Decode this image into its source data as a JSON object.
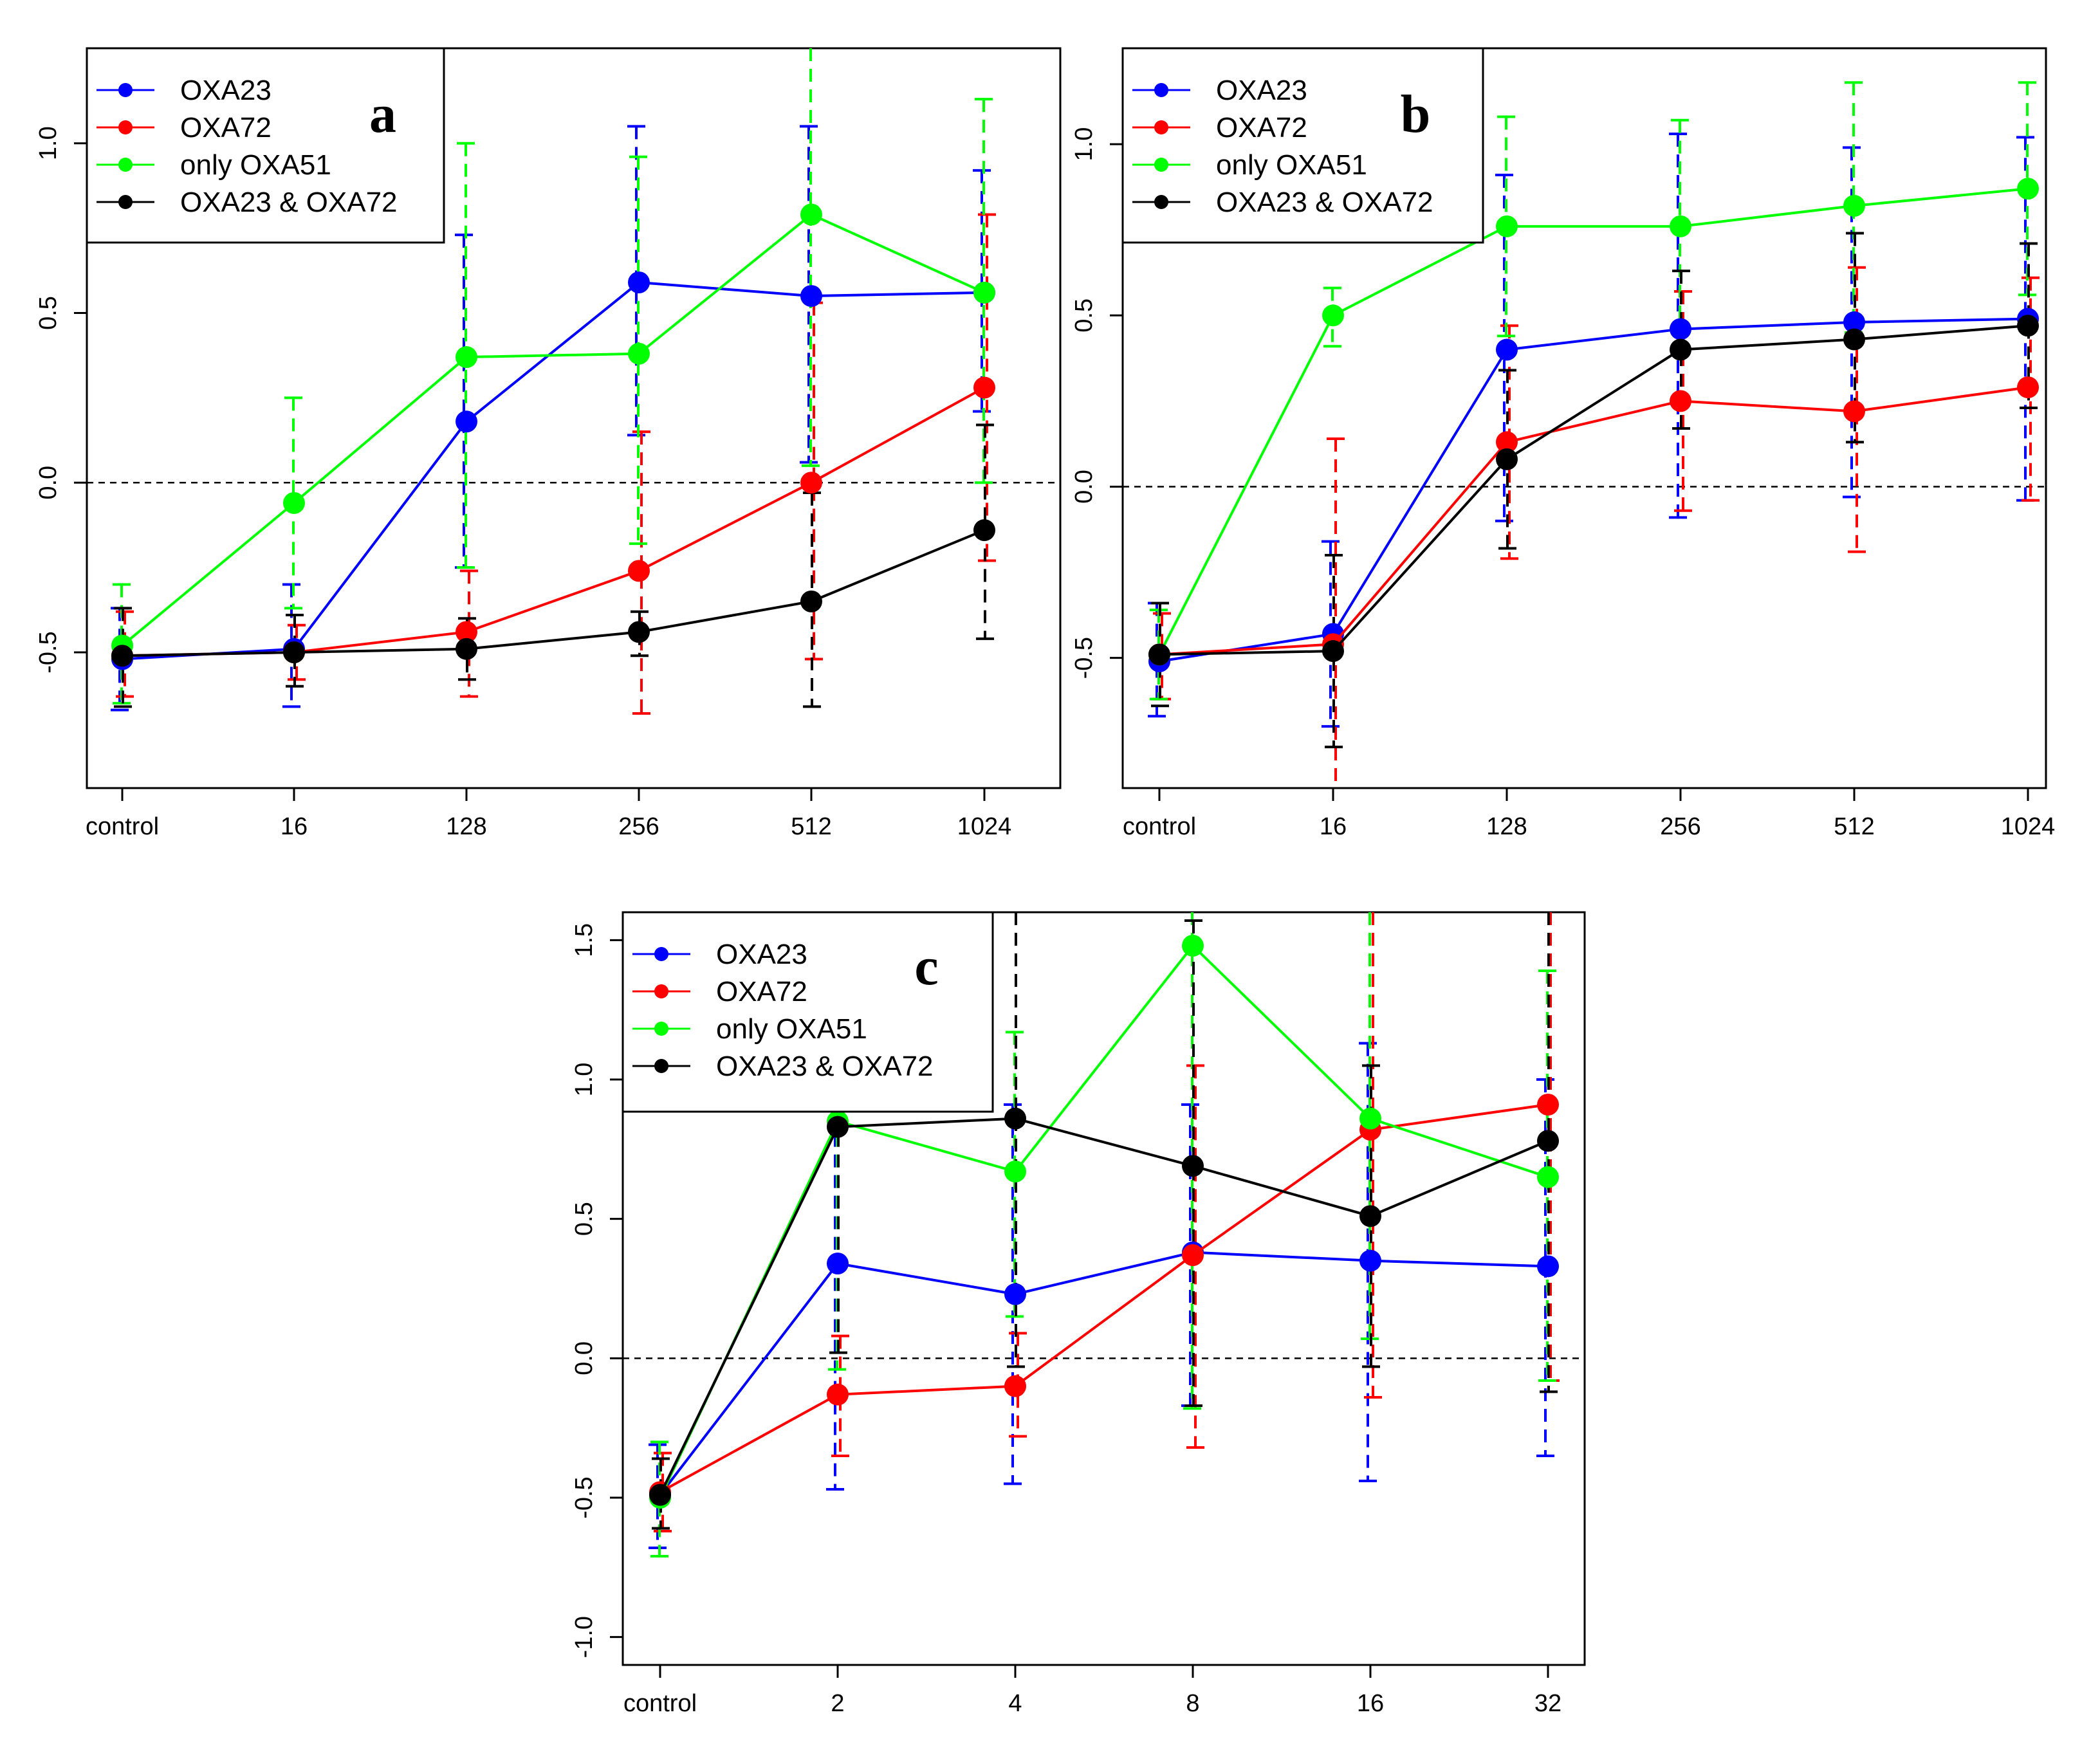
{
  "figure_title": "",
  "colors": {
    "OXA23": "#0000ff",
    "OXA72": "#ff0000",
    "only OXA51": "#00ff00",
    "OXA23 & OXA72": "#000000",
    "axis": "#000000",
    "reference_line": "#000000"
  },
  "legend_labels": [
    "OXA23",
    "OXA72",
    "only OXA51",
    "OXA23 & OXA72"
  ],
  "chart_data": [
    {
      "type": "line",
      "panel": "a",
      "title": "",
      "xlabel": "",
      "ylabel": "",
      "categories": [
        "control",
        "16",
        "128",
        "256",
        "512",
        "1024"
      ],
      "ylim": [
        -0.9,
        1.28
      ],
      "yticks": [
        -0.5,
        0.0,
        0.5,
        1.0
      ],
      "ytick_labels": [
        "-0.5",
        "0.0",
        "0.5",
        "1.0"
      ],
      "reference_line": 0.0,
      "legend_position": "top-left",
      "error_bars": "dashed, mean ± sd",
      "series": [
        {
          "name": "OXA23",
          "values": [
            -0.52,
            -0.49,
            0.18,
            0.59,
            0.55,
            0.56
          ],
          "lower": [
            -0.67,
            -0.66,
            -0.25,
            0.14,
            0.06,
            0.21
          ],
          "upper": [
            -0.37,
            -0.3,
            0.73,
            1.05,
            1.05,
            0.92
          ]
        },
        {
          "name": "OXA72",
          "values": [
            -0.51,
            -0.5,
            -0.44,
            -0.26,
            0.0,
            0.28
          ],
          "lower": [
            -0.63,
            -0.58,
            -0.63,
            -0.68,
            -0.52,
            -0.23
          ],
          "upper": [
            -0.38,
            -0.42,
            -0.26,
            0.15,
            0.53,
            0.79
          ]
        },
        {
          "name": "only OXA51",
          "values": [
            -0.48,
            -0.06,
            0.37,
            0.38,
            0.79,
            0.56
          ],
          "lower": [
            -0.65,
            -0.37,
            -0.25,
            -0.18,
            0.05,
            0.0
          ],
          "upper": [
            -0.3,
            0.25,
            1.0,
            0.96,
            1.28,
            1.13
          ]
        },
        {
          "name": "OXA23 & OXA72",
          "values": [
            -0.51,
            -0.5,
            -0.49,
            -0.44,
            -0.35,
            -0.14
          ],
          "lower": [
            -0.66,
            -0.6,
            -0.58,
            -0.51,
            -0.66,
            -0.46
          ],
          "upper": [
            -0.37,
            -0.39,
            -0.4,
            -0.38,
            -0.03,
            0.17
          ]
        }
      ]
    },
    {
      "type": "line",
      "panel": "b",
      "title": "",
      "xlabel": "",
      "ylabel": "",
      "categories": [
        "control",
        "16",
        "128",
        "256",
        "512",
        "1024"
      ],
      "ylim": [
        -0.88,
        1.28
      ],
      "yticks": [
        -0.5,
        0.0,
        0.5,
        1.0
      ],
      "ytick_labels": [
        "-0.5",
        "0.0",
        "0.5",
        "1.0"
      ],
      "reference_line": 0.0,
      "legend_position": "top-left",
      "error_bars": "dashed, mean ± sd",
      "series": [
        {
          "name": "OXA23",
          "values": [
            -0.51,
            -0.43,
            0.4,
            0.46,
            0.48,
            0.49
          ],
          "lower": [
            -0.67,
            -0.7,
            -0.1,
            -0.09,
            -0.03,
            -0.04
          ],
          "upper": [
            -0.34,
            -0.16,
            0.91,
            1.03,
            0.99,
            1.02
          ]
        },
        {
          "name": "OXA72",
          "values": [
            -0.49,
            -0.46,
            0.13,
            0.25,
            0.22,
            0.29
          ],
          "lower": [
            -0.62,
            -0.88,
            -0.21,
            -0.07,
            -0.19,
            -0.04
          ],
          "upper": [
            -0.37,
            0.14,
            0.47,
            0.57,
            0.64,
            0.61
          ]
        },
        {
          "name": "only OXA51",
          "values": [
            -0.49,
            0.5,
            0.76,
            0.76,
            0.82,
            0.87
          ],
          "lower": [
            -0.62,
            0.41,
            0.44,
            0.45,
            0.45,
            0.56
          ],
          "upper": [
            -0.36,
            0.58,
            1.08,
            1.07,
            1.18,
            1.18
          ]
        },
        {
          "name": "OXA23 & OXA72",
          "values": [
            -0.49,
            -0.48,
            0.08,
            0.4,
            0.43,
            0.47
          ],
          "lower": [
            -0.64,
            -0.76,
            -0.18,
            0.17,
            0.13,
            0.23
          ],
          "upper": [
            -0.34,
            -0.2,
            0.34,
            0.63,
            0.74,
            0.71
          ]
        }
      ]
    },
    {
      "type": "line",
      "panel": "c",
      "title": "",
      "xlabel": "",
      "ylabel": "",
      "categories": [
        "control",
        "2",
        "4",
        "8",
        "16",
        "32"
      ],
      "ylim": [
        -1.1,
        1.6
      ],
      "yticks": [
        -1.0,
        -0.5,
        0.0,
        0.5,
        1.0,
        1.5
      ],
      "ytick_labels": [
        "-1.0",
        "-0.5",
        "0.0",
        "0.5",
        "1.0",
        "1.5"
      ],
      "reference_line": 0.0,
      "legend_position": "top-left",
      "error_bars": "dashed, mean ± sd",
      "series": [
        {
          "name": "OXA23",
          "values": [
            -0.49,
            0.34,
            0.23,
            0.38,
            0.35,
            0.33
          ],
          "lower": [
            -0.68,
            -0.47,
            -0.45,
            -0.17,
            -0.44,
            -0.35
          ],
          "upper": [
            -0.31,
            1.1,
            0.91,
            0.91,
            1.13,
            1.0
          ]
        },
        {
          "name": "OXA72",
          "values": [
            -0.48,
            -0.13,
            -0.1,
            0.37,
            0.82,
            0.91
          ],
          "lower": [
            -0.62,
            -0.35,
            -0.28,
            -0.32,
            -0.14,
            -0.08
          ],
          "upper": [
            -0.34,
            0.08,
            0.09,
            1.05,
            1.6,
            1.6
          ]
        },
        {
          "name": "only OXA51",
          "values": [
            -0.5,
            0.85,
            0.67,
            1.48,
            0.86,
            0.65
          ],
          "lower": [
            -0.71,
            -0.04,
            0.15,
            -0.18,
            0.07,
            -0.08
          ],
          "upper": [
            -0.3,
            1.1,
            1.17,
            1.6,
            1.6,
            1.39
          ]
        },
        {
          "name": "OXA23 & OXA72",
          "values": [
            -0.49,
            0.83,
            0.86,
            0.69,
            0.51,
            0.78
          ],
          "lower": [
            -0.61,
            0.02,
            -0.03,
            -0.17,
            -0.03,
            -0.12
          ],
          "upper": [
            -0.36,
            1.1,
            1.6,
            1.57,
            1.05,
            1.6
          ]
        }
      ]
    }
  ]
}
